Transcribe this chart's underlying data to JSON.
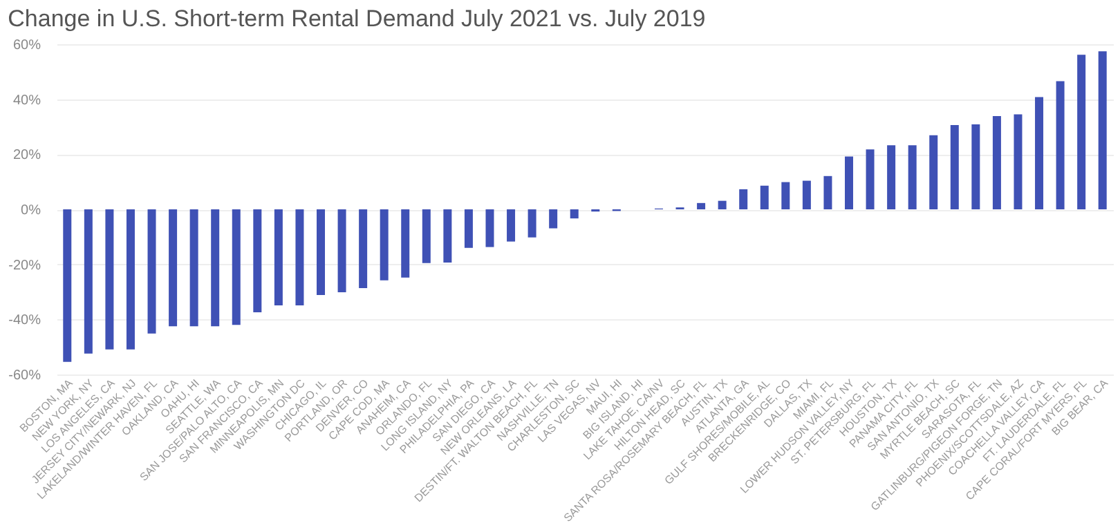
{
  "chart_data": {
    "type": "bar",
    "title": "Change in U.S. Short-term Rental Demand July 2021 vs. July 2019",
    "categories": [
      "BOSTON, MA",
      "NEW YORK, NY",
      "LOS ANGELES, CA",
      "JERSEY CITY/NEWARK, NJ",
      "LAKELAND/WINTER HAVEN, FL",
      "OAKLAND, CA",
      "OAHU, HI",
      "SEATTLE, WA",
      "SAN JOSE/PALO ALTO, CA",
      "SAN FRANCISCO, CA",
      "MINNEAPOLIS, MN",
      "WASHINGTON DC",
      "CHICAGO, IL",
      "PORTLAND, OR",
      "DENVER, CO",
      "CAPE COD, MA",
      "ANAHEIM, CA",
      "ORLANDO, FL",
      "LONG ISLAND, NY",
      "PHILADELPHIA, PA",
      "SAN DIEGO, CA",
      "NEW ORLEANS, LA",
      "DESTIN/FT. WALTON BEACH, FL",
      "NASHVILLE, TN",
      "CHARLESTON, SC",
      "LAS VEGAS, NV",
      "MAUI, HI",
      "BIG ISLAND, HI",
      "LAKE TAHOE, CA/NV",
      "HILTON HEAD, SC",
      "SANTA ROSA/ROSEMARY BEACH, FL",
      "AUSTIN, TX",
      "ATLANTA, GA",
      "GULF SHORES/MOBILE, AL",
      "BRECKENRIDGE, CO",
      "DALLAS, TX",
      "MIAMI, FL",
      "LOWER HUDSON VALLEY, NY",
      "ST. PETERSBURG, FL",
      "HOUSTON, TX",
      "PANAMA CITY, FL",
      "SAN ANTONIO, TX",
      "MYRTLE BEACH, SC",
      "SARASOTA, FL",
      "GATLINBURG/PIGEON FORGE, TN",
      "PHOENIX/SCOTTSDALE, AZ",
      "COACHELLA VALLEY, CA",
      "FT. LAUDERDALE, FL",
      "CAPE CORAL/FORT MYERS, FL",
      "BIG BEAR, CA"
    ],
    "values": [
      -55.4,
      -52.4,
      -50.9,
      -50.9,
      -45.1,
      -42.5,
      -42.5,
      -42.5,
      -42.0,
      -37.4,
      -34.9,
      -34.9,
      -31.1,
      -30.1,
      -28.6,
      -25.8,
      -24.8,
      -19.5,
      -19.3,
      -14.0,
      -13.7,
      -11.7,
      -10.2,
      -6.9,
      -3.3,
      -0.8,
      -0.6,
      0,
      0.3,
      0.7,
      2.3,
      3.1,
      7.3,
      8.6,
      9.9,
      10.4,
      12.1,
      19.2,
      21.8,
      23.3,
      23.3,
      26.9,
      30.6,
      30.9,
      33.9,
      34.5,
      40.8,
      46.6,
      56.2,
      57.4
    ],
    "color": "#3f51b5",
    "ylim": [
      -60,
      60
    ],
    "yticks": [
      {
        "value": -60,
        "label": "-60%"
      },
      {
        "value": -40,
        "label": "-40%"
      },
      {
        "value": -20,
        "label": "-20%"
      },
      {
        "value": 0,
        "label": "0%"
      },
      {
        "value": 20,
        "label": "20%"
      },
      {
        "value": 40,
        "label": "40%"
      },
      {
        "value": 60,
        "label": "60%"
      }
    ],
    "grid": "y"
  }
}
